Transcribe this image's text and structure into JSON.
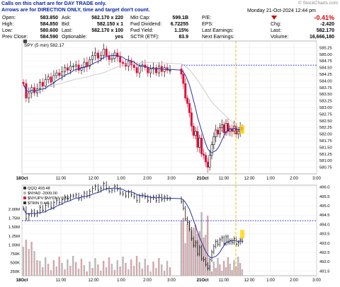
{
  "note": {
    "line1": "Calls on this chart are for DAY TRADE only.",
    "line2": "Arrows are for DIRECTION ONLY, time and target don't count."
  },
  "brand": "© StockCharts.com",
  "quote": {
    "date_label": "Monday 21-Oct-2024 12:44 pm",
    "change_pct": "-0.41%",
    "rows": [
      {
        "c1l": "Open:",
        "c1v": "583.850",
        "c2l": "Ask:",
        "c2v": "582.170 x 220",
        "c3l": "Mkt Cap:",
        "c3v": "599.1B",
        "c4l": "P/E:",
        "c4v": "",
        "c5l": "",
        "c5v": ""
      },
      {
        "c1l": "High:",
        "c1v": "584.850",
        "c2l": "Bid:",
        "c2v": "582.150 x 1",
        "c3l": "Fwd Dividend:",
        "c3v": "6.72255",
        "c4l": "EPS:",
        "c4v": "",
        "c5l": "Chg:",
        "c5v": "-2.420"
      },
      {
        "c1l": "Low:",
        "c1v": "580.600",
        "c2l": "Last:",
        "c2v": "582.170 x 100",
        "c3l": "Fwd Yield:",
        "c3v": "1.15%",
        "c4l": "Last Earnings:",
        "c4v": "",
        "c5l": "Last:",
        "c5v": "582.170"
      },
      {
        "c1l": "Prev Close:",
        "c1v": "584.590",
        "c2l": "Optionable:",
        "c2v": "yes",
        "c3l": "SCTR (ETF):",
        "c3v": "83.9",
        "c4l": "Next Earnings:",
        "c4v": "",
        "c5l": "Volume:",
        "c5v": "16,666,180"
      }
    ]
  },
  "chart_data": [
    {
      "type": "candlestick",
      "title": "SPY (5 min) 582.17",
      "symbol": "SPY",
      "timeframe": "5 min",
      "last": 582.17,
      "ylim": [
        580.5,
        585.5
      ],
      "y_ticks": [
        "585.25",
        "585.00",
        "584.75",
        "584.50",
        "584.25",
        "584.00",
        "583.75",
        "583.50",
        "583.25",
        "583.00",
        "582.75",
        "582.50",
        "582.25",
        "582.00",
        "581.75",
        "581.50",
        "581.25",
        "581.00",
        "580.75"
      ],
      "x_ticks": [
        "18Oct",
        "11:00",
        "12:00",
        "1:00",
        "2:00",
        "3:00",
        "21Oct",
        "11:00",
        "12:00",
        "1:00",
        "2:00",
        "3:00"
      ],
      "prev_close_line": 584.59,
      "last_marker": 582.17,
      "series": [
        {
          "name": "SPY",
          "close": [
            583.9,
            583.35,
            583.55,
            583.75,
            583.55,
            583.7,
            583.95,
            583.8,
            584.05,
            584.15,
            583.95,
            584.2,
            584.3,
            584.2,
            584.35,
            584.5,
            584.4,
            584.55,
            584.55,
            584.6,
            584.4,
            584.5,
            584.7,
            584.55,
            584.8,
            584.95,
            585.05,
            584.85,
            584.95,
            585.2,
            584.95,
            584.8,
            584.85,
            585.05,
            584.9,
            584.7,
            584.65,
            584.55,
            584.75,
            584.6,
            584.5,
            584.3,
            584.55,
            584.6,
            584.5,
            584.3,
            584.45,
            584.5,
            584.3,
            584.55,
            584.35,
            584.5,
            584.4,
            584.4,
            584.25,
            583.9,
            583.35,
            583.15,
            582.8,
            582.3,
            581.95,
            582.1,
            581.5,
            581.85,
            581.25,
            581.2,
            580.95,
            580.75,
            581.2,
            581.6,
            581.9,
            582.15,
            582.0,
            582.25,
            582.35,
            582.05,
            582.4,
            582.1,
            582.2,
            582.1,
            582.3,
            582.0,
            582.1,
            582.25,
            582.17
          ]
        }
      ],
      "moving_averages": [
        "MA (dark blue)",
        "MA (light grey)"
      ]
    },
    {
      "type": "line",
      "title": "QQQ 493.48",
      "legend": [
        "QQQ 493.48",
        "$NYAD -2009.00",
        "$NYUPV:$NYDNV 0.50",
        "$TRIN 0.44"
      ],
      "ylim": [
        491.25,
        496.1
      ],
      "y_ticks": [
        "496.0",
        "495.5",
        "495.0",
        "494.5",
        "494.0",
        "493.5",
        "493.0",
        "492.5",
        "492.0",
        "491.5"
      ],
      "left_ticks": [
        "2.00M",
        "1.75M",
        "1.50M",
        "1.25M",
        "1.00M",
        "750K",
        "500K",
        "250K"
      ],
      "x_ticks": [
        "18Oct",
        "11:00",
        "12:00",
        "1:00",
        "2:00",
        "3:00",
        "21Oct",
        "11:00",
        "12:00",
        "1:00",
        "2:00",
        "3:00"
      ],
      "ref_line": 494.2,
      "last_marker": 493.48
    }
  ],
  "icons": {
    "down_arrow": "down-triangle-icon",
    "spy_icon": "chart-type-icon"
  }
}
